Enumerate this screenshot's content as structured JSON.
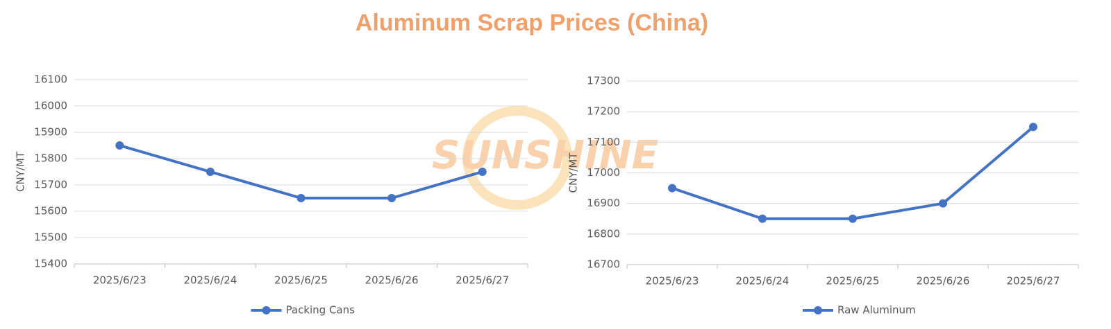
{
  "title": "Aluminum Scrap Prices (China)",
  "watermark": "SUNSHINE",
  "chart_data": [
    {
      "type": "line",
      "y_label": "CNY/MT",
      "categories": [
        "2025/6/23",
        "2025/6/24",
        "2025/6/25",
        "2025/6/26",
        "2025/6/27"
      ],
      "series": [
        {
          "name": "Packing Cans",
          "color": "#4472c4",
          "values": [
            15850,
            15750,
            15650,
            15650,
            15750
          ]
        }
      ],
      "ylim": [
        15400,
        16100
      ],
      "yticks": [
        15400,
        15500,
        15600,
        15700,
        15800,
        15900,
        16000,
        16100
      ],
      "grid": true,
      "legend": "bottom"
    },
    {
      "type": "line",
      "y_label": "CNY/MT",
      "categories": [
        "2025/6/23",
        "2025/6/24",
        "2025/6/25",
        "2025/6/26",
        "2025/6/27"
      ],
      "series": [
        {
          "name": "Raw Aluminum",
          "color": "#4472c4",
          "values": [
            16950,
            16850,
            16850,
            16900,
            17150
          ]
        }
      ],
      "ylim": [
        16700,
        17300
      ],
      "yticks": [
        16700,
        16800,
        16900,
        17000,
        17100,
        17200,
        17300
      ],
      "grid": true,
      "legend": "bottom"
    }
  ]
}
